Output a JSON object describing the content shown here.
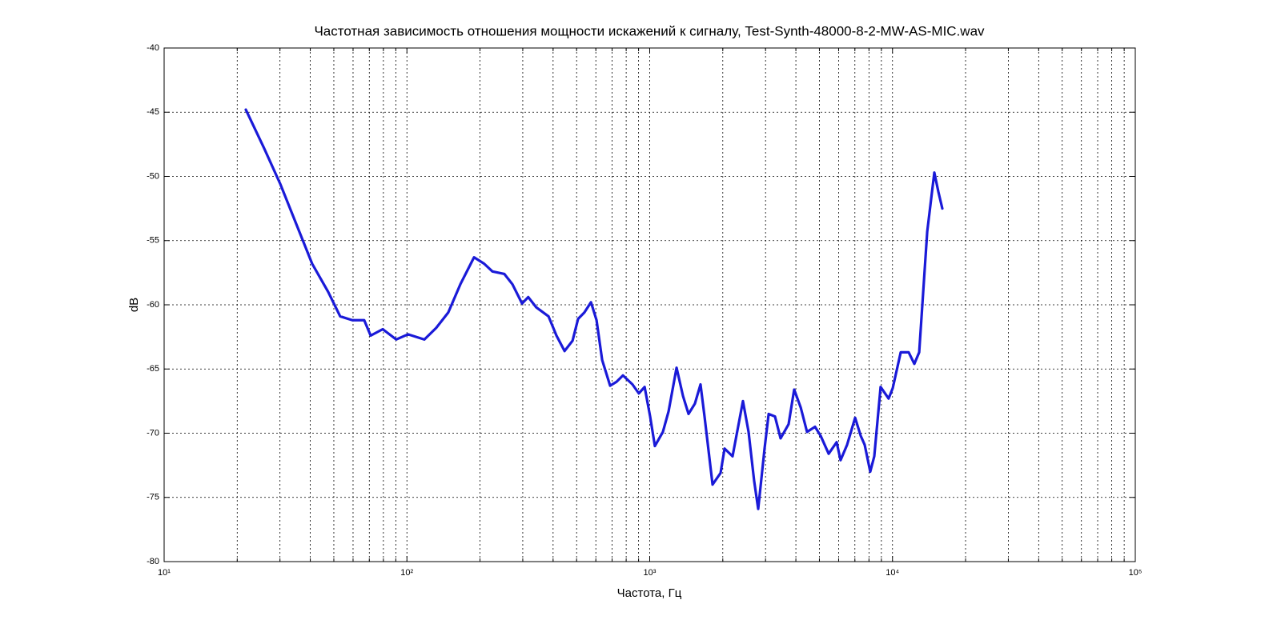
{
  "chart_data": {
    "type": "line",
    "title": "Частотная зависимость отношения мощности искажений к сигналу, Test-Synth-48000-8-2-MW-AS-MIC.wav",
    "xlabel": "Частота, Гц",
    "ylabel": "dB",
    "xscale": "log",
    "xlim": [
      10,
      100000
    ],
    "ylim": [
      -80,
      -40
    ],
    "xticks": [
      {
        "value": 10,
        "label": "10¹"
      },
      {
        "value": 100,
        "label": "10²"
      },
      {
        "value": 1000,
        "label": "10³"
      },
      {
        "value": 10000,
        "label": "10⁴"
      },
      {
        "value": 100000,
        "label": "10⁵"
      }
    ],
    "xminor_ticks": [
      20,
      30,
      40,
      50,
      60,
      70,
      80,
      90,
      200,
      300,
      400,
      500,
      600,
      700,
      800,
      900,
      2000,
      3000,
      4000,
      5000,
      6000,
      7000,
      8000,
      9000,
      20000,
      30000,
      40000,
      50000,
      60000,
      70000,
      80000,
      90000
    ],
    "yticks": [
      -80,
      -75,
      -70,
      -65,
      -60,
      -55,
      -50,
      -45,
      -40
    ],
    "grid": true,
    "color": "#1a1ad8",
    "x": [
      21.7,
      25.8,
      30.1,
      35.0,
      40.7,
      47.4,
      53.1,
      59.6,
      66.7,
      70.9,
      79.5,
      90.4,
      101,
      118,
      132,
      148,
      166,
      189,
      208,
      225,
      252,
      272,
      298,
      316,
      341,
      383,
      413,
      446,
      481,
      507,
      538,
      573,
      604,
      637,
      687,
      730,
      776,
      849,
      902,
      953,
      1004,
      1050,
      1133,
      1196,
      1290,
      1371,
      1445,
      1535,
      1619,
      1682,
      1815,
      1958,
      2034,
      2194,
      2421,
      2554,
      2692,
      2798,
      2972,
      3090,
      3281,
      3460,
      3733,
      3936,
      4188,
      4446,
      4797,
      5058,
      5459,
      5888,
      6110,
      6501,
      7015,
      7397,
      7680,
      8098,
      8413,
      8933,
      9638,
      10020,
      10810,
      11660,
      12300,
      12880,
      13900,
      14870,
      15450,
      16040
    ],
    "values": [
      -44.8,
      -47.8,
      -50.6,
      -53.7,
      -56.8,
      -59.0,
      -60.9,
      -61.2,
      -61.2,
      -62.4,
      -61.9,
      -62.7,
      -62.3,
      -62.7,
      -61.8,
      -60.6,
      -58.4,
      -56.3,
      -56.8,
      -57.4,
      -57.6,
      -58.4,
      -59.9,
      -59.4,
      -60.2,
      -60.9,
      -62.4,
      -63.6,
      -62.8,
      -61.1,
      -60.6,
      -59.8,
      -61.2,
      -64.3,
      -66.3,
      -66.0,
      -65.5,
      -66.2,
      -66.9,
      -66.4,
      -68.7,
      -71.0,
      -69.9,
      -68.3,
      -64.9,
      -67.1,
      -68.5,
      -67.7,
      -66.2,
      -68.7,
      -74.0,
      -73.1,
      -71.2,
      -71.8,
      -67.5,
      -69.9,
      -73.7,
      -75.9,
      -71.2,
      -68.5,
      -68.7,
      -70.4,
      -69.3,
      -66.6,
      -68.0,
      -69.9,
      -69.5,
      -70.2,
      -71.6,
      -70.7,
      -72.1,
      -70.9,
      -68.8,
      -70.2,
      -70.9,
      -73.0,
      -71.8,
      -66.4,
      -67.3,
      -66.5,
      -63.7,
      -63.7,
      -64.6,
      -63.7,
      -54.3,
      -49.7,
      -51.2,
      -52.5
    ]
  }
}
